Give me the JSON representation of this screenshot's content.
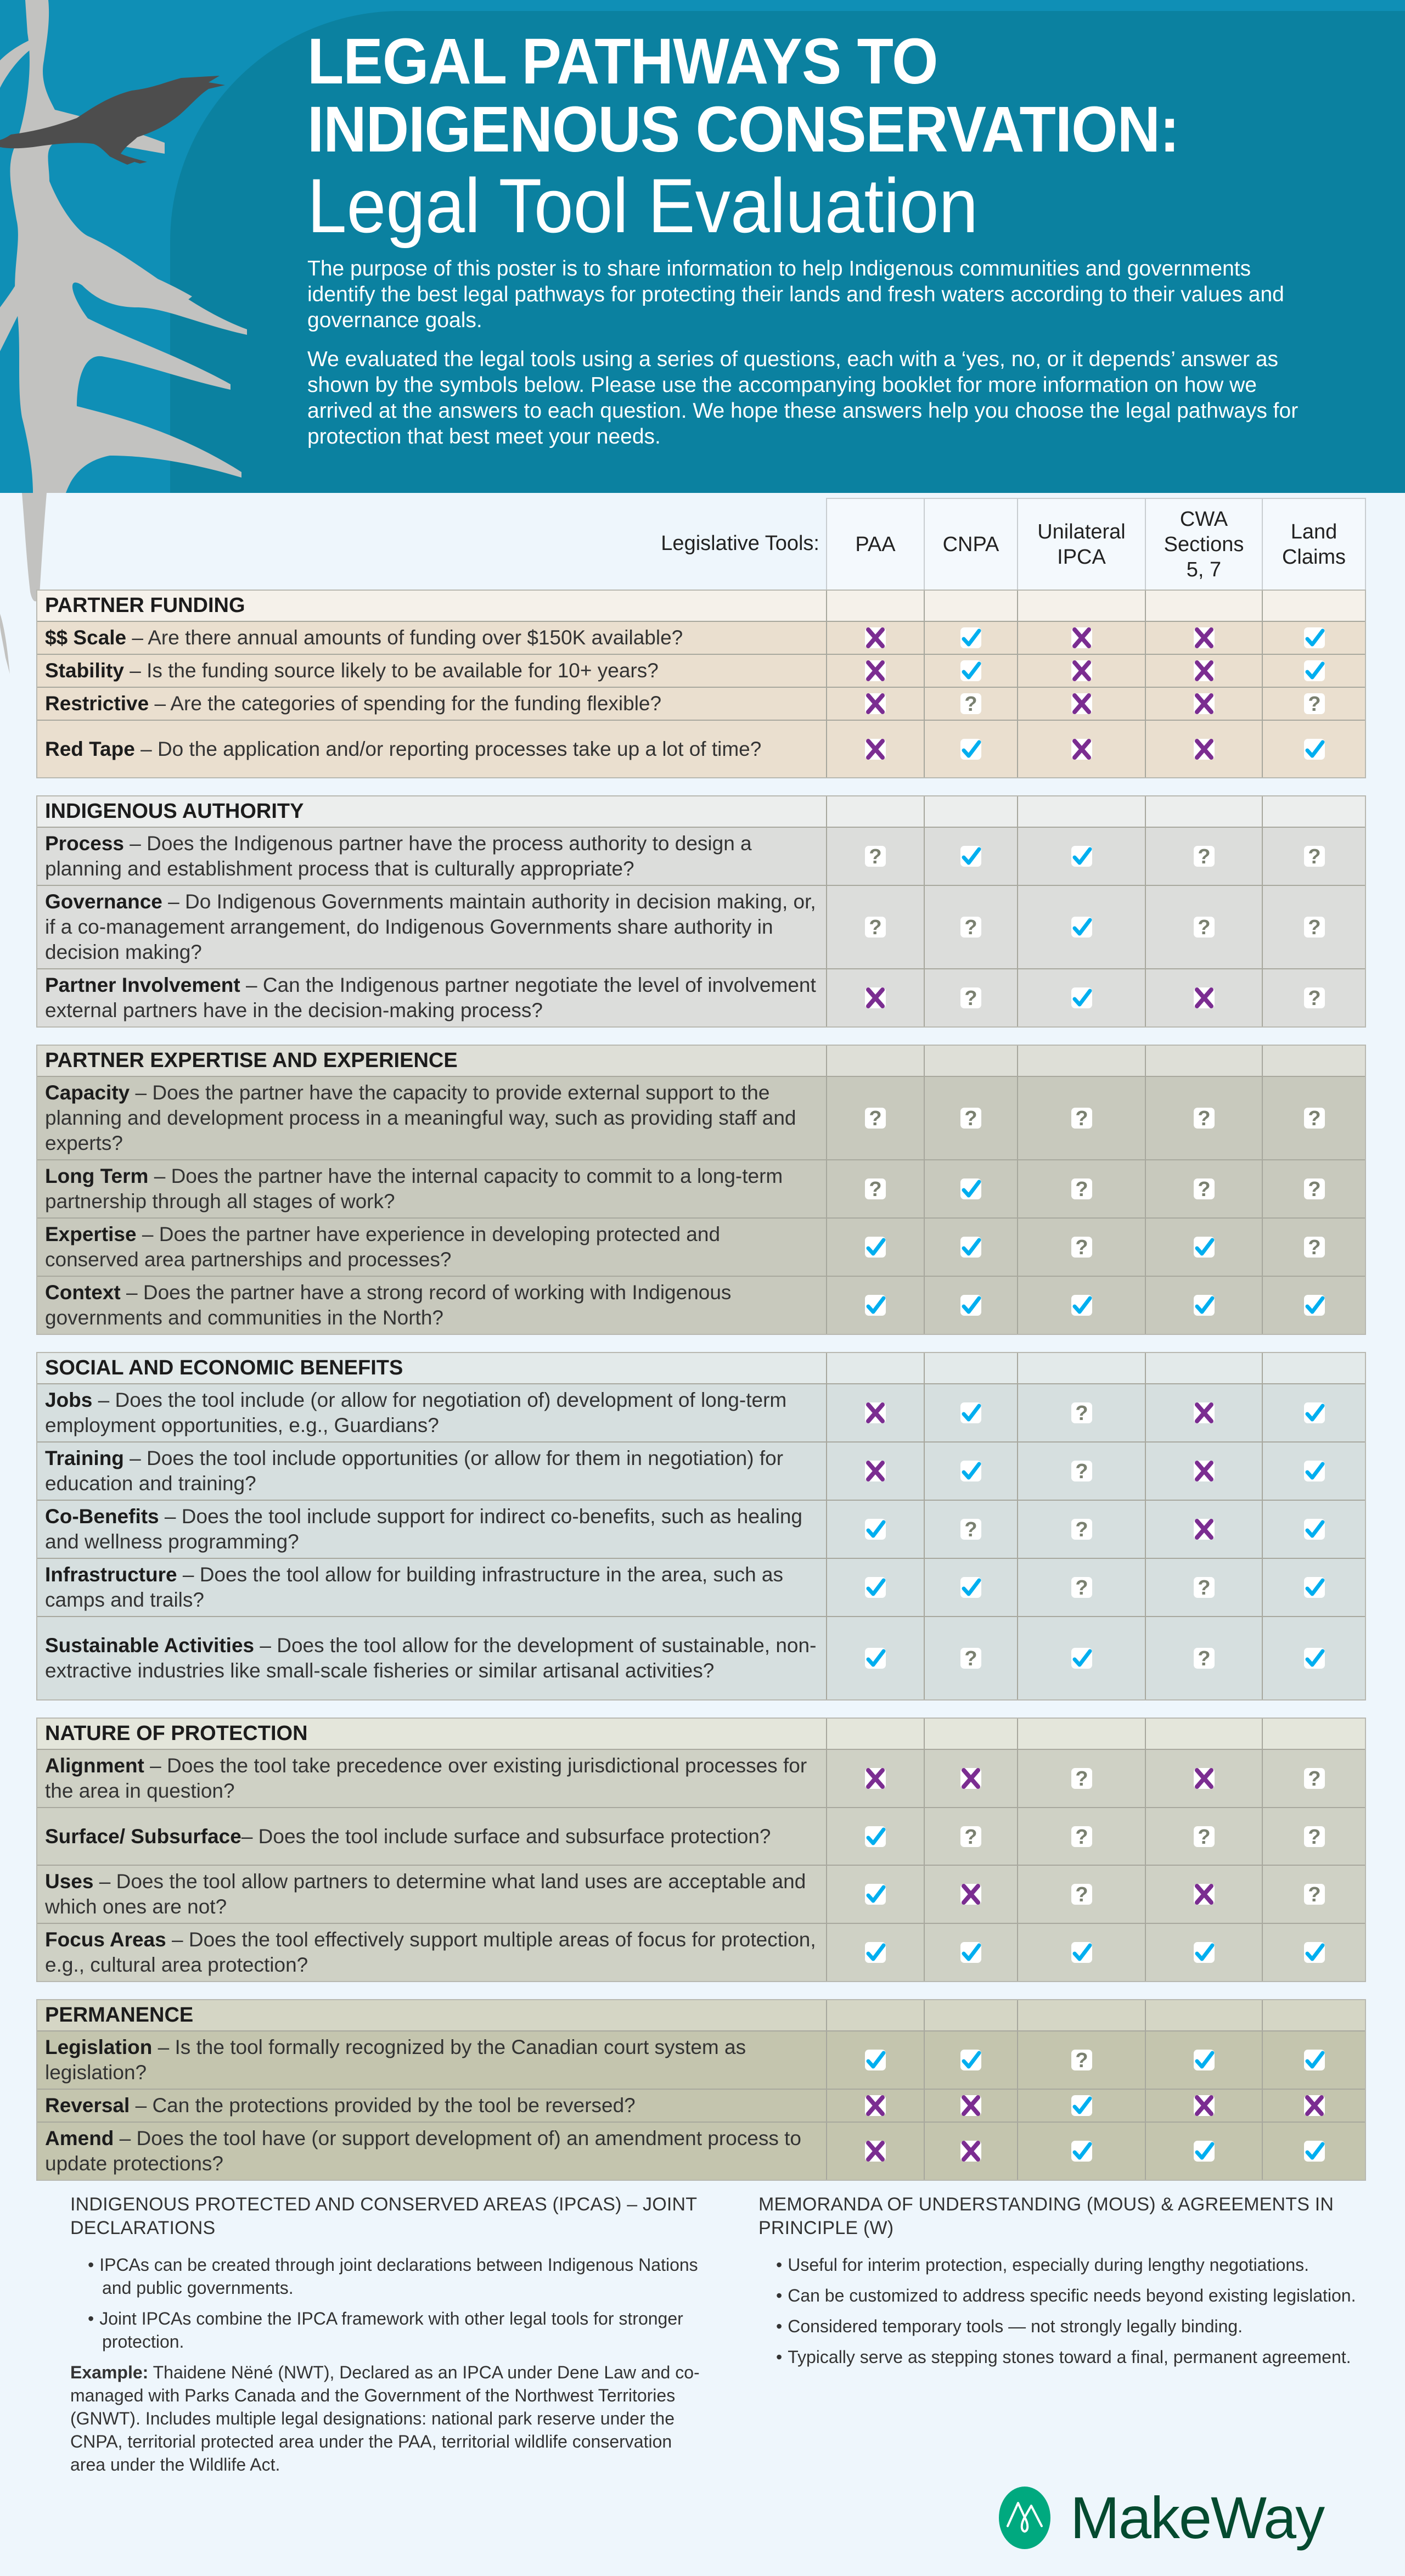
{
  "header": {
    "title_line1": "LEGAL PATHWAYS TO",
    "title_line2": "INDIGENOUS CONSERVATION:",
    "subtitle": "Legal Tool Evaluation",
    "intro_paragraphs": [
      "The purpose of this poster is to share information to help Indigenous communities and governments identify the best legal pathways for protecting their lands and fresh waters according to their values and governance goals.",
      "We evaluated the legal tools using a series of questions, each with a ‘yes, no, or it depends’ answer as shown by the symbols below.  Please use the accompanying booklet for more information on how we arrived at the answers to each question. We hope these answers help you choose the legal pathways for protection that best meet your needs."
    ]
  },
  "legend": {
    "yes": "check-icon",
    "no": "x-icon",
    "depends": "question-icon",
    "colors": {
      "yes": "#00aeef",
      "no": "#7b2d91",
      "depends": "#7a8070",
      "header_bg": "#0f8fb6"
    }
  },
  "table": {
    "tools_label": "Legislative Tools:",
    "tools": [
      "PAA",
      "CNPA",
      "Unilateral IPCA",
      "CWA Sections 5, 7",
      "Land Claims"
    ],
    "tools_lines": [
      [
        "PAA"
      ],
      [
        "CNPA"
      ],
      [
        "Unilateral",
        "IPCA"
      ],
      [
        "CWA",
        "Sections",
        "5, 7"
      ],
      [
        "Land",
        "Claims"
      ]
    ],
    "sections": [
      {
        "title": "PARTNER FUNDING",
        "key": "fund",
        "rows": [
          {
            "term": "$$ Scale",
            "question": "Are there annual amounts of funding over $150K available?",
            "values": [
              "no",
              "yes",
              "no",
              "no",
              "yes"
            ]
          },
          {
            "term": "Stability",
            "question": "Is the funding source likely to be available for 10+ years?",
            "values": [
              "no",
              "yes",
              "no",
              "no",
              "yes"
            ]
          },
          {
            "term": "Restrictive",
            "question": "Are the categories of spending for the funding flexible?",
            "values": [
              "no",
              "depends",
              "no",
              "no",
              "depends"
            ]
          },
          {
            "term": "Red Tape",
            "question": "Do the application and/or reporting processes take up a lot of time?",
            "values": [
              "no",
              "yes",
              "no",
              "no",
              "yes"
            ]
          }
        ]
      },
      {
        "title": "INDIGENOUS AUTHORITY",
        "key": "auth",
        "rows": [
          {
            "term": "Process",
            "question": "Does the Indigenous partner have the process authority to design a planning and establishment process that is culturally appropriate?",
            "values": [
              "depends",
              "yes",
              "yes",
              "depends",
              "depends"
            ]
          },
          {
            "term": "Governance",
            "question": "Do Indigenous Governments maintain authority in decision making, or, if a co-management arrangement, do Indigenous Governments share authority in decision making?",
            "values": [
              "depends",
              "depends",
              "yes",
              "depends",
              "depends"
            ]
          },
          {
            "term": "Partner Involvement",
            "question": "Can the Indigenous partner negotiate the level of involvement external partners have in the decision-making process?",
            "values": [
              "no",
              "depends",
              "yes",
              "no",
              "depends"
            ]
          }
        ]
      },
      {
        "title": "PARTNER EXPERTISE AND EXPERIENCE",
        "key": "exp",
        "rows": [
          {
            "term": "Capacity",
            "question": "Does the partner have the capacity to provide external support to the planning and development process in a meaningful way, such as providing staff and experts?",
            "values": [
              "depends",
              "depends",
              "depends",
              "depends",
              "depends"
            ]
          },
          {
            "term": "Long Term",
            "question": "Does the partner have the internal capacity to commit to a long-term partnership through all stages of work?",
            "values": [
              "depends",
              "yes",
              "depends",
              "depends",
              "depends"
            ]
          },
          {
            "term": "Expertise",
            "question": "Does the partner have experience in developing protected and conserved area partnerships and processes?",
            "values": [
              "yes",
              "yes",
              "depends",
              "yes",
              "depends"
            ]
          },
          {
            "term": "Context",
            "question": "Does the partner have a strong record of working with Indigenous governments and communities in the North?",
            "values": [
              "yes",
              "yes",
              "yes",
              "yes",
              "yes"
            ]
          }
        ]
      },
      {
        "title": "SOCIAL AND ECONOMIC BENEFITS",
        "key": "soc",
        "rows": [
          {
            "term": "Jobs",
            "question": "Does the tool include (or allow for negotiation of) development of long-term employment opportunities, e.g., Guardians?",
            "values": [
              "no",
              "yes",
              "depends",
              "no",
              "yes"
            ]
          },
          {
            "term": "Training",
            "question": "Does the tool include opportunities (or allow for them in negotiation) for education and training?",
            "values": [
              "no",
              "yes",
              "depends",
              "no",
              "yes"
            ]
          },
          {
            "term": "Co-Benefits",
            "question": "Does the tool include support for indirect co-benefits, such as healing and wellness programming?",
            "values": [
              "yes",
              "depends",
              "depends",
              "no",
              "yes"
            ]
          },
          {
            "term": "Infrastructure",
            "question": "Does the tool allow for building infrastructure in the area, such as camps and trails?",
            "values": [
              "yes",
              "yes",
              "depends",
              "depends",
              "yes"
            ]
          },
          {
            "term": "Sustainable Activities",
            "question": "Does the tool allow for the development of sustainable, non-extractive industries like small-scale fisheries or similar artisanal activities?",
            "values": [
              "yes",
              "depends",
              "yes",
              "depends",
              "yes"
            ]
          }
        ]
      },
      {
        "title": "NATURE OF PROTECTION",
        "key": "nat",
        "rows": [
          {
            "term": "Alignment",
            "question": "Does the tool take precedence over existing jurisdictional processes for the area in question?",
            "values": [
              "no",
              "no",
              "depends",
              "no",
              "depends"
            ]
          },
          {
            "term": "Surface/ Subsurface",
            "sep": "– ",
            "question": "Does the tool include surface and subsurface protection?",
            "values": [
              "yes",
              "depends",
              "depends",
              "depends",
              "depends"
            ]
          },
          {
            "term": "Uses",
            "question": "Does the tool allow partners to determine what land uses are acceptable and which ones are not?",
            "values": [
              "yes",
              "no",
              "depends",
              "no",
              "depends"
            ]
          },
          {
            "term": "Focus Areas",
            "question": "Does the tool effectively support multiple areas of focus for protection, e.g., cultural area protection?",
            "values": [
              "yes",
              "yes",
              "yes",
              "yes",
              "yes"
            ]
          }
        ]
      },
      {
        "title": "PERMANENCE",
        "key": "perm",
        "rows": [
          {
            "term": "Legislation",
            "question": "Is the tool formally recognized by the Canadian court system as legislation?",
            "values": [
              "yes",
              "yes",
              "depends",
              "yes",
              "yes"
            ]
          },
          {
            "term": "Reversal",
            "question": "Can the protections provided by the tool be reversed?",
            "values": [
              "no",
              "no",
              "yes",
              "no",
              "no"
            ]
          },
          {
            "term": "Amend",
            "question": "Does the tool have (or support development of) an amendment process to update protections?",
            "values": [
              "no",
              "no",
              "yes",
              "yes",
              "yes"
            ]
          }
        ]
      }
    ]
  },
  "notes": {
    "left": {
      "heading": "INDIGENOUS PROTECTED AND CONSERVED AREAS (IPCAS) – JOINT DECLARATIONS",
      "bullets": [
        "IPCAs can be created through joint declarations between Indigenous Nations and public governments.",
        "Joint IPCAs combine the IPCA framework with other legal tools for stronger protection."
      ],
      "example_label": "Example:",
      "example_text": " Thaidene Nëné (NWT), Declared as an IPCA under Dene Law and co-managed with Parks Canada and the Government of the Northwest Territories (GNWT). Includes multiple legal designations: national park reserve under the CNPA, territorial protected area under the PAA, territorial wildlife conservation area under the Wildlife Act."
    },
    "right": {
      "heading": "MEMORANDA OF UNDERSTANDING (MOUS) & AGREEMENTS IN PRINCIPLE (W)",
      "bullets": [
        "Useful for interim protection, especially during lengthy negotiations.",
        "Can be customized to address specific needs beyond existing legislation.",
        "Considered temporary tools — not strongly legally binding.",
        "Typically serve as stepping stones toward a final, permanent agreement."
      ]
    }
  },
  "brand": {
    "name": "MakeWay",
    "color": "#044a2f",
    "mark_color": "#00a97f"
  }
}
